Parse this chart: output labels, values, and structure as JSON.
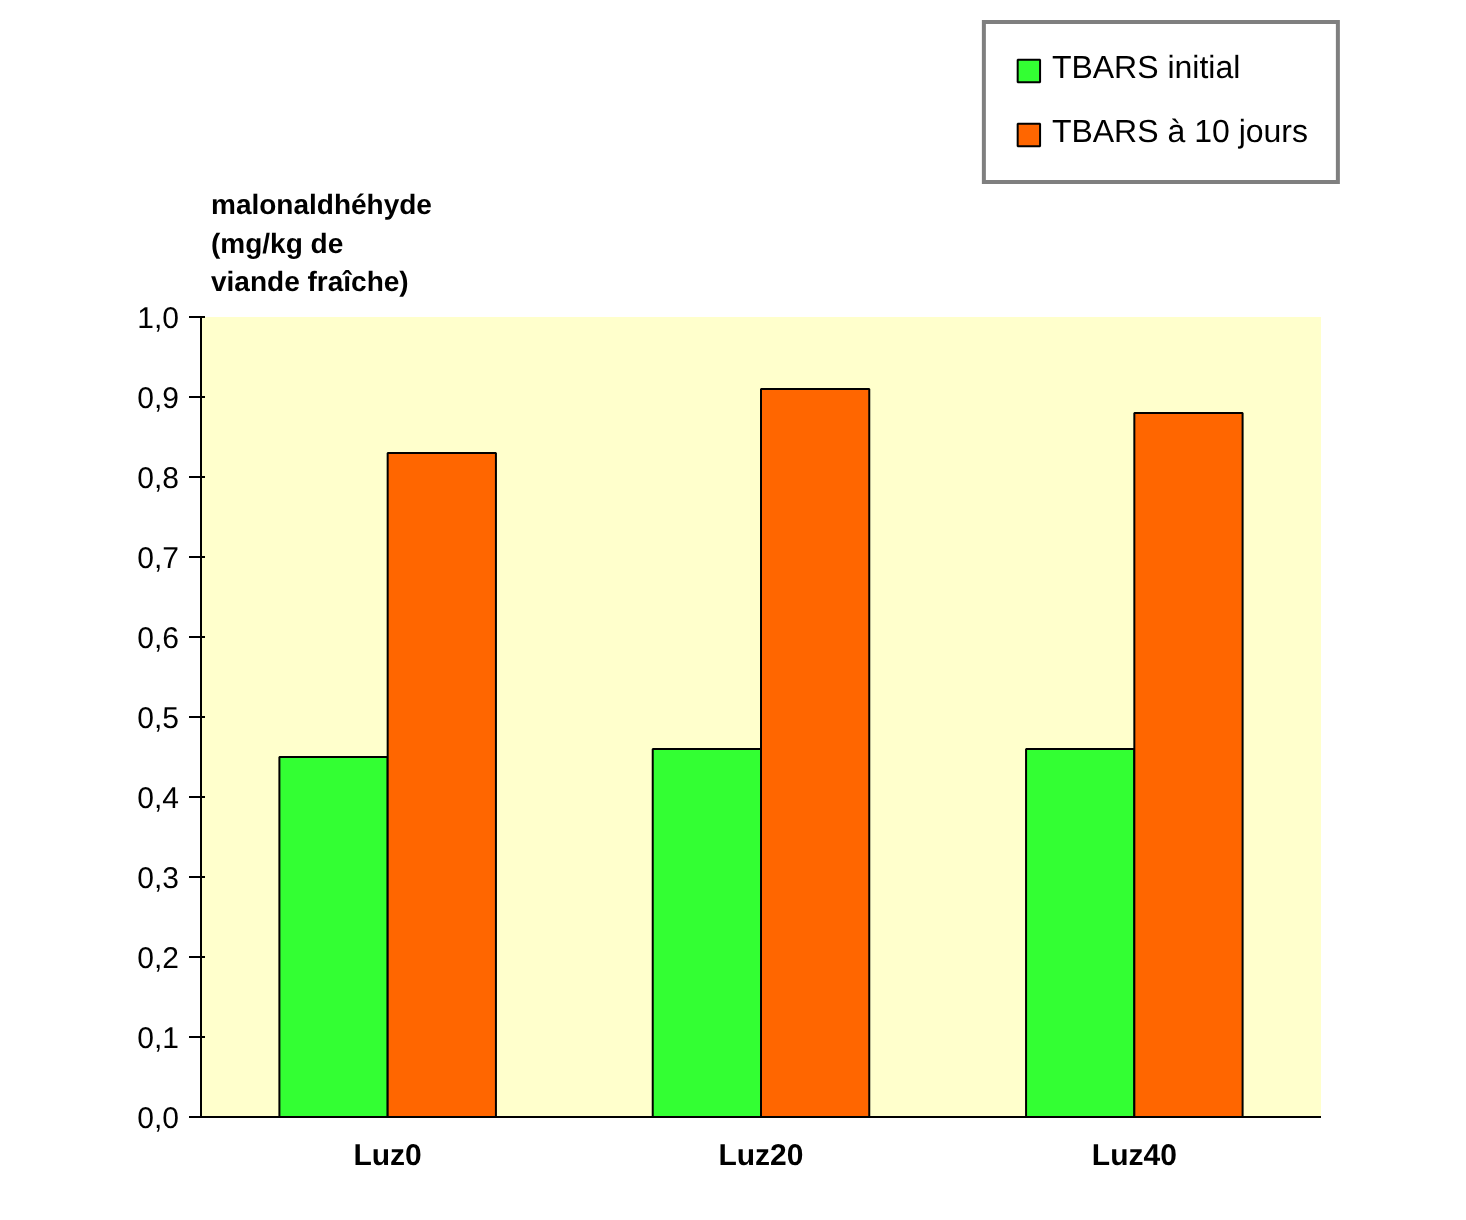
{
  "chart_data": {
    "type": "bar",
    "ylabel": "malonaldhéhyde\n(mg/kg de\nviande fraîche)",
    "categories": [
      "Luz0",
      "Luz20",
      "Luz40"
    ],
    "series": [
      {
        "name": "TBARS initial",
        "color": "#33ff33",
        "values": [
          0.45,
          0.46,
          0.46
        ]
      },
      {
        "name": "TBARS à 10 jours",
        "color": "#ff6600",
        "values": [
          0.83,
          0.91,
          0.88
        ]
      }
    ],
    "ylim": [
      0,
      1
    ],
    "yticks": [
      {
        "value": 0,
        "label": "0,0"
      },
      {
        "value": 0.1,
        "label": "0,1"
      },
      {
        "value": 0.2,
        "label": "0,2"
      },
      {
        "value": 0.3,
        "label": "0,3"
      },
      {
        "value": 0.4,
        "label": "0,4"
      },
      {
        "value": 0.5,
        "label": "0,5"
      },
      {
        "value": 0.6,
        "label": "0,6"
      },
      {
        "value": 0.7,
        "label": "0,7"
      },
      {
        "value": 0.8,
        "label": "0,8"
      },
      {
        "value": 0.9,
        "label": "0,9"
      },
      {
        "value": 1,
        "label": "1,0"
      }
    ],
    "grid": false,
    "legend": "top right"
  }
}
